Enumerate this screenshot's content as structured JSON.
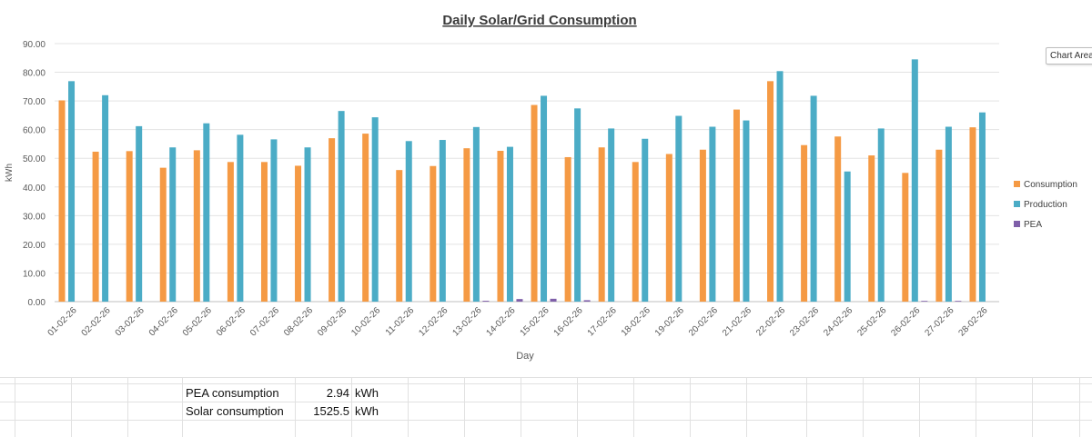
{
  "chart_data": {
    "type": "bar",
    "title": "Daily Solar/Grid Consumption",
    "xlabel": "Day",
    "ylabel": "kWh",
    "ylim": [
      0,
      90
    ],
    "yticks": [
      "0.00",
      "10.00",
      "20.00",
      "30.00",
      "40.00",
      "50.00",
      "60.00",
      "70.00",
      "80.00",
      "90.00"
    ],
    "grid": true,
    "legend_position": "right",
    "categories": [
      "01-02-26",
      "02-02-26",
      "03-02-26",
      "04-02-26",
      "05-02-26",
      "06-02-26",
      "07-02-26",
      "08-02-26",
      "09-02-26",
      "10-02-26",
      "11-02-26",
      "12-02-26",
      "13-02-26",
      "14-02-26",
      "15-02-26",
      "16-02-26",
      "17-02-26",
      "18-02-26",
      "19-02-26",
      "20-02-26",
      "21-02-26",
      "22-02-26",
      "23-02-26",
      "24-02-26",
      "25-02-26",
      "26-02-26",
      "27-02-26",
      "28-02-26"
    ],
    "series": [
      {
        "name": "Consumption",
        "color": "#f59a44",
        "values": [
          70.2,
          52.3,
          52.5,
          46.7,
          52.8,
          48.7,
          48.7,
          47.4,
          57.0,
          58.6,
          45.9,
          47.3,
          53.5,
          52.6,
          68.6,
          50.4,
          53.8,
          48.7,
          51.5,
          53.0,
          67.0,
          76.9,
          54.6,
          57.6,
          51.0,
          44.9,
          53.0,
          60.8
        ]
      },
      {
        "name": "Production",
        "color": "#4bacc6",
        "values": [
          76.9,
          72.0,
          61.2,
          53.8,
          62.2,
          58.2,
          56.6,
          53.8,
          66.5,
          64.3,
          56.0,
          56.4,
          60.9,
          54.0,
          71.8,
          67.4,
          60.4,
          56.8,
          64.8,
          61.0,
          63.2,
          80.4,
          71.8,
          45.4,
          60.4,
          84.5,
          61.0,
          66.0
        ]
      },
      {
        "name": "PEA",
        "color": "#7f5fa9",
        "values": [
          0,
          0,
          0,
          0,
          0,
          0,
          0,
          0,
          0,
          0,
          0,
          0,
          0.3,
          0.9,
          1.0,
          0.5,
          0,
          0,
          0,
          0,
          0,
          0,
          0,
          0,
          0,
          0.2,
          0.04,
          0
        ]
      }
    ]
  },
  "chart_area_label": "Chart Area",
  "summary": {
    "pea_label": "PEA consumption",
    "pea_value": "2.94",
    "pea_unit": "kWh",
    "solar_label": "Solar consumption",
    "solar_value": "1525.5",
    "solar_unit": "kWh"
  }
}
